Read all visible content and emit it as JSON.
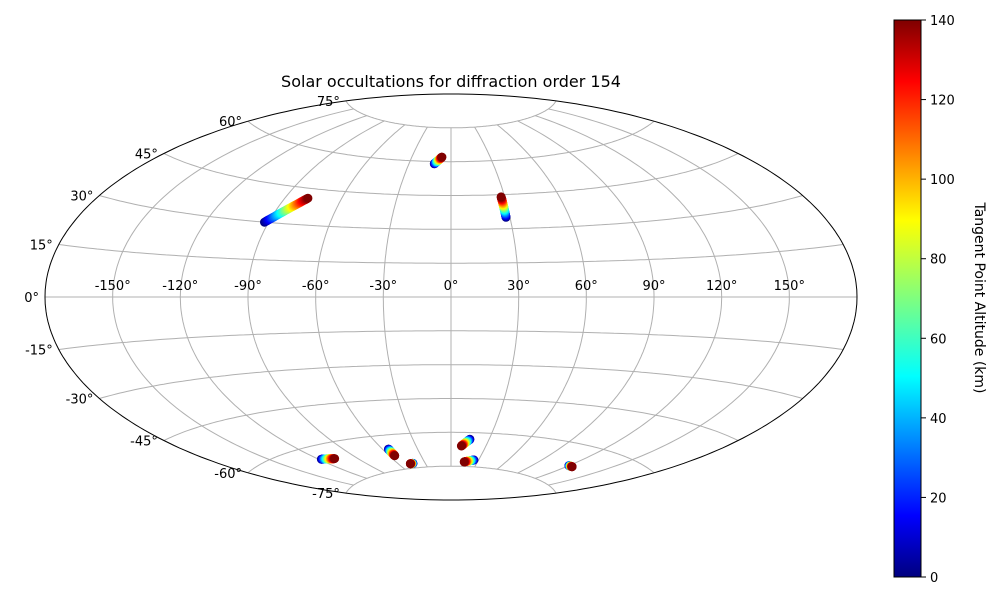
{
  "chart_data": {
    "type": "scatter",
    "projection": "aitoff",
    "title": "Solar occultations for diffraction order 154",
    "colorbar": {
      "label": "Tangent Point Altitude (km)",
      "range": [
        0,
        140
      ],
      "ticks": [
        "0",
        "20",
        "40",
        "60",
        "80",
        "100",
        "120",
        "140"
      ],
      "colormap": "jet"
    },
    "lon_ticks": [
      "-150°",
      "-120°",
      "-90°",
      "-60°",
      "-30°",
      "0°",
      "30°",
      "60°",
      "90°",
      "120°",
      "150°"
    ],
    "lat_ticks": [
      "-75°",
      "-60°",
      "-45°",
      "-30°",
      "-15°",
      "0°",
      "15°",
      "30°",
      "45°",
      "60°",
      "75°"
    ],
    "grid": true,
    "tracks": [
      {
        "lon_start": -92,
        "lat_start": 30,
        "lon_end": -78,
        "lat_end": 41
      },
      {
        "lon_start": -12,
        "lat_start": 59,
        "lon_end": -7,
        "lat_end": 62
      },
      {
        "lon_start": 28,
        "lat_start": 35,
        "lon_end": 28,
        "lat_end": 44
      },
      {
        "lon_start": -118,
        "lat_start": -65,
        "lon_end": -108,
        "lat_end": -66
      },
      {
        "lon_start": -55,
        "lat_start": -66,
        "lon_end": -55,
        "lat_end": -69
      },
      {
        "lon_start": -44,
        "lat_start": -73,
        "lon_end": -47,
        "lat_end": -73
      },
      {
        "lon_start": 15,
        "lat_start": -63,
        "lon_end": 9,
        "lat_end": -66
      },
      {
        "lon_start": 25,
        "lat_start": -72,
        "lon_end": 15,
        "lat_end": -73
      },
      {
        "lon_start": 120,
        "lat_start": -68,
        "lon_end": 124,
        "lat_end": -68
      }
    ]
  }
}
